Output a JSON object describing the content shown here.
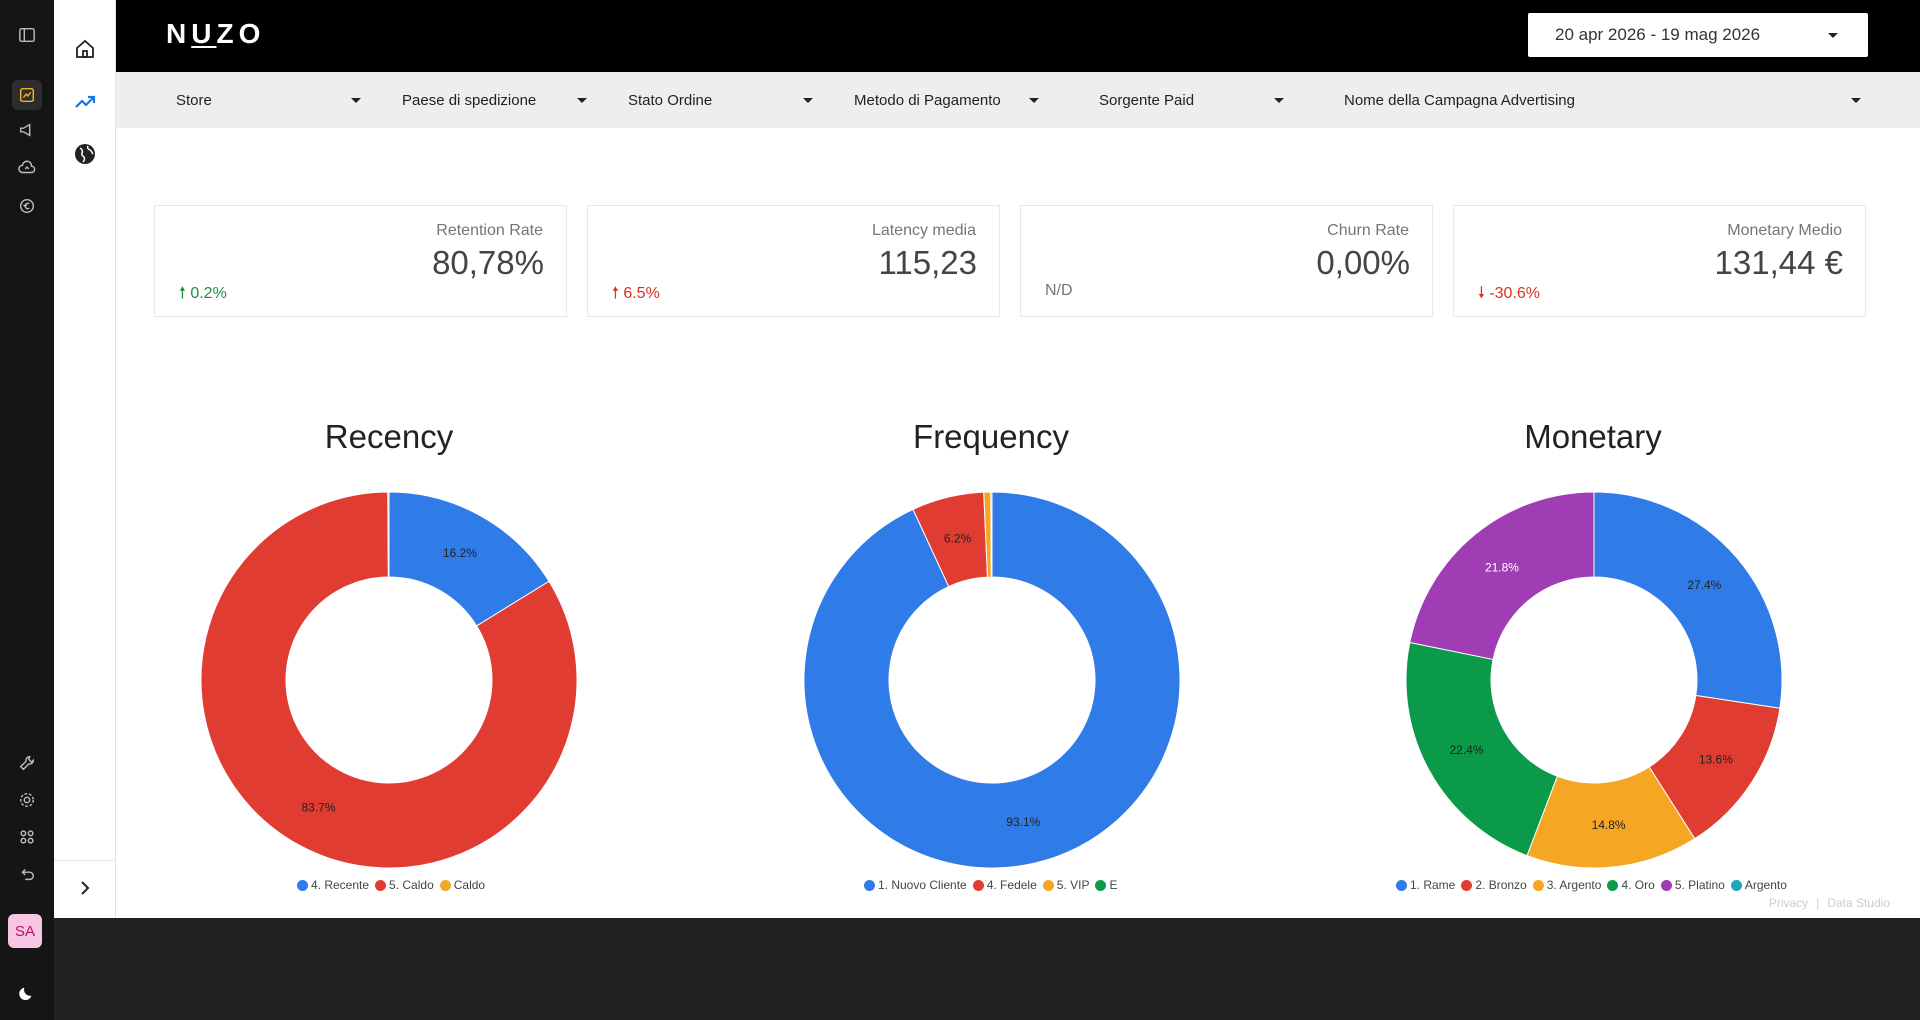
{
  "brand": {
    "logo_pre": "N",
    "logo_u": "U",
    "logo_post": "ZO"
  },
  "date_range": "20 apr 2026 - 19 mag 2026",
  "filters": [
    "Store",
    "Paese di spedizione",
    "Stato Ordine",
    "Metodo di Pagamento",
    "Sorgente Paid",
    "Nome della Campagna Advertising"
  ],
  "kpis": [
    {
      "label": "Retention Rate",
      "value": "80,78%",
      "delta": "0.2%",
      "trend": "up-good"
    },
    {
      "label": "Latency media",
      "value": "115,23",
      "delta": "6.5%",
      "trend": "up-bad"
    },
    {
      "label": "Churn Rate",
      "value": "0,00%",
      "delta": "N/D",
      "trend": "none"
    },
    {
      "label": "Monetary Medio",
      "value": "131,44 €",
      "delta": "-30.6%",
      "trend": "down-bad"
    }
  ],
  "colors": {
    "blue": "#2f7be8",
    "red": "#e03c31",
    "orange": "#f5a623",
    "green": "#0a9a4a",
    "purple": "#a03cb4",
    "teal": "#1ba8b8"
  },
  "avatar": "SA",
  "footer": {
    "privacy": "Privacy",
    "studio": "Data Studio"
  },
  "chart_data": [
    {
      "type": "pie",
      "title": "Recency",
      "series": [
        {
          "name": "4. Recente",
          "value": 16.2,
          "label": "16.2%",
          "color": "#2f7be8"
        },
        {
          "name": "5. Caldo",
          "value": 83.7,
          "label": "83.7%",
          "color": "#e03c31"
        },
        {
          "name": "Caldo",
          "value": 0.1,
          "label": "",
          "color": "#f5a623"
        }
      ]
    },
    {
      "type": "pie",
      "title": "Frequency",
      "series": [
        {
          "name": "1. Nuovo Cliente",
          "value": 93.1,
          "label": "93.1%",
          "color": "#2f7be8"
        },
        {
          "name": "4. Fedele",
          "value": 6.2,
          "label": "6.2%",
          "color": "#e03c31"
        },
        {
          "name": "5. VIP",
          "value": 0.6,
          "label": "",
          "color": "#f5a623"
        },
        {
          "name": "E",
          "value": 0.1,
          "label": "",
          "color": "#0a9a4a"
        }
      ]
    },
    {
      "type": "pie",
      "title": "Monetary",
      "series": [
        {
          "name": "1. Rame",
          "value": 27.4,
          "label": "27.4%",
          "color": "#2f7be8"
        },
        {
          "name": "2. Bronzo",
          "value": 13.6,
          "label": "13.6%",
          "color": "#e03c31"
        },
        {
          "name": "3. Argento",
          "value": 14.8,
          "label": "14.8%",
          "color": "#f5a623"
        },
        {
          "name": "4. Oro",
          "value": 22.4,
          "label": "22.4%",
          "color": "#0a9a4a"
        },
        {
          "name": "5. Platino",
          "value": 21.8,
          "label": "21.8%",
          "color": "#a03cb4"
        },
        {
          "name": "Argento",
          "value": 0.0,
          "label": "",
          "color": "#1ba8b8"
        }
      ]
    }
  ]
}
